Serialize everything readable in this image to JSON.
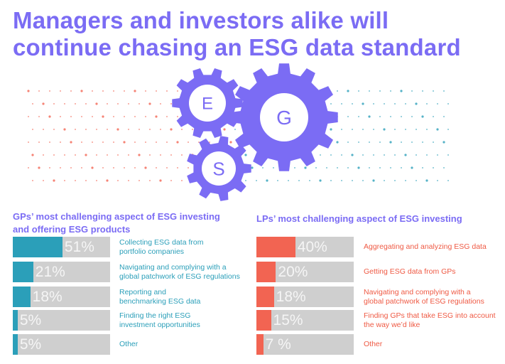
{
  "header": {
    "title": "Managers and investors alike will\ncontinue chasing an ESG data standard"
  },
  "decoration": {
    "letters": [
      "E",
      "G",
      "S"
    ]
  },
  "chart_data": [
    {
      "type": "hbar",
      "title": "GPs’ most challenging aspect of ESG investing\nand offering ESG products",
      "categories": [
        "Collecting ESG data from\nportfolio companies",
        "Navigating and complying with a\nglobal patchwork of ESG regulations",
        "Reporting and\nbenchmarking ESG data",
        "Finding the right ESG\ninvestment opportunities",
        "Other"
      ],
      "values": [
        51,
        21,
        18,
        5,
        5
      ],
      "value_labels": [
        "51%",
        "21%",
        "18%",
        "5%",
        "5%"
      ],
      "color": "#2b9fb9",
      "xlim": [
        0,
        100
      ]
    },
    {
      "type": "hbar",
      "title": "LPs’ most challenging aspect of ESG investing",
      "categories": [
        "Aggregating and analyzing ESG data",
        "Getting ESG data from GPs",
        "Navigating and complying with a\nglobal patchwork of ESG regulations",
        "Finding GPs that take ESG into account\nthe way we’d like",
        "Other"
      ],
      "values": [
        40,
        20,
        18,
        15,
        7
      ],
      "value_labels": [
        "40%",
        "20%",
        "18%",
        "15%",
        "7 %"
      ],
      "color": "#f26452",
      "xlim": [
        0,
        100
      ]
    }
  ]
}
